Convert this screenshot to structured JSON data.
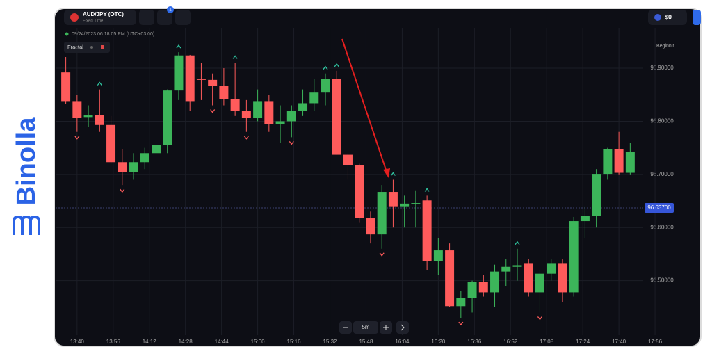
{
  "brand": "Binolla",
  "header": {
    "asset": "AUD/JPY (OTC)",
    "mode": "Fixed Time",
    "badge": "1",
    "balance": "$0",
    "level": "Beginnir",
    "timestamp": "09/24/2023 06:18:05 PM (UTC+03:00)",
    "indicator": "Fractal"
  },
  "controls": {
    "timeframe": "5m"
  },
  "chart_data": {
    "type": "candlestick",
    "up_color": "#3cb55a",
    "down_color": "#ff5b5b",
    "grid": true,
    "open": [
      96.892,
      96.838,
      96.808,
      96.812,
      96.793,
      96.723,
      96.705,
      96.723,
      96.74,
      96.756,
      96.858,
      96.924,
      96.88,
      96.878,
      96.867,
      96.842,
      96.819,
      96.806,
      96.838,
      96.795,
      96.8,
      96.819,
      96.834,
      96.854,
      96.88,
      96.737,
      96.718,
      96.618,
      96.587,
      96.667,
      96.64,
      96.645,
      96.651,
      96.537,
      96.557,
      96.452,
      96.467,
      96.498,
      96.478,
      96.517,
      96.526,
      96.533,
      96.478,
      96.513,
      96.533,
      96.478,
      96.612,
      96.622,
      96.701,
      96.748,
      96.703
    ],
    "high": [
      96.921,
      96.85,
      96.83,
      96.86,
      96.81,
      96.748,
      96.74,
      96.75,
      96.76,
      96.86,
      96.93,
      96.925,
      96.91,
      96.89,
      96.9,
      96.91,
      96.84,
      96.86,
      96.85,
      96.83,
      96.83,
      96.86,
      96.88,
      96.89,
      96.895,
      96.74,
      96.72,
      96.63,
      96.68,
      96.69,
      96.66,
      96.67,
      96.66,
      96.58,
      96.57,
      96.48,
      96.5,
      96.51,
      96.53,
      96.54,
      96.56,
      96.54,
      96.52,
      96.54,
      96.54,
      96.62,
      96.64,
      96.71,
      96.75,
      96.78,
      96.76
    ],
    "low": [
      96.832,
      96.78,
      96.79,
      96.78,
      96.72,
      96.68,
      96.69,
      96.71,
      96.72,
      96.74,
      96.84,
      96.82,
      96.84,
      96.83,
      96.83,
      96.81,
      96.78,
      96.8,
      96.78,
      96.76,
      96.77,
      96.81,
      96.82,
      96.83,
      96.737,
      96.69,
      96.61,
      96.57,
      96.56,
      96.6,
      96.6,
      96.6,
      96.52,
      96.51,
      96.45,
      96.43,
      96.44,
      96.47,
      96.45,
      96.49,
      96.5,
      96.47,
      96.44,
      96.5,
      96.46,
      96.47,
      96.58,
      96.6,
      96.69,
      96.7,
      96.7
    ],
    "close": [
      96.838,
      96.806,
      96.811,
      96.793,
      96.723,
      96.705,
      96.723,
      96.74,
      96.756,
      96.858,
      96.924,
      96.838,
      96.878,
      96.867,
      96.842,
      96.819,
      96.806,
      96.838,
      96.795,
      96.8,
      96.819,
      96.834,
      96.854,
      96.88,
      96.737,
      96.718,
      96.618,
      96.587,
      96.667,
      96.64,
      96.645,
      96.646,
      96.537,
      96.557,
      96.452,
      96.467,
      96.498,
      96.478,
      96.517,
      96.526,
      96.529,
      96.478,
      96.513,
      96.533,
      96.478,
      96.612,
      96.622,
      96.701,
      96.748,
      96.703,
      96.743
    ],
    "fractals_up": [
      3,
      10,
      15,
      23,
      24,
      29,
      32,
      40
    ],
    "fractals_down": [
      1,
      5,
      13,
      16,
      20,
      28,
      35,
      42
    ],
    "current_price": {
      "value": 96.637,
      "label": "96.63700"
    },
    "ylim": [
      96.4,
      96.976
    ],
    "yticks": [
      {
        "value": 96.5,
        "label": "96.50000"
      },
      {
        "value": 96.6,
        "label": "96.60000"
      },
      {
        "value": 96.7,
        "label": "96.70000"
      },
      {
        "value": 96.8,
        "label": "96.80000"
      },
      {
        "value": 96.9,
        "label": "96.90000"
      }
    ],
    "xlim": [
      -0.9,
      56.2
    ],
    "xticks": [
      {
        "value": 1,
        "label": "13:40"
      },
      {
        "value": 4.2,
        "label": "13:56"
      },
      {
        "value": 7.4,
        "label": "14:12"
      },
      {
        "value": 10.6,
        "label": "14:28"
      },
      {
        "value": 13.8,
        "label": "14:44"
      },
      {
        "value": 17,
        "label": "15:00"
      },
      {
        "value": 20.2,
        "label": "15:16"
      },
      {
        "value": 23.4,
        "label": "15:32"
      },
      {
        "value": 26.6,
        "label": "15:48"
      },
      {
        "value": 29.8,
        "label": "16:04"
      },
      {
        "value": 33,
        "label": "16:20"
      },
      {
        "value": 36.2,
        "label": "16:36"
      },
      {
        "value": 39.4,
        "label": "16:52"
      },
      {
        "value": 42.6,
        "label": "17:08"
      },
      {
        "value": 45.8,
        "label": "17:24"
      },
      {
        "value": 49,
        "label": "17:40"
      },
      {
        "value": 52.2,
        "label": "17:56"
      }
    ]
  }
}
